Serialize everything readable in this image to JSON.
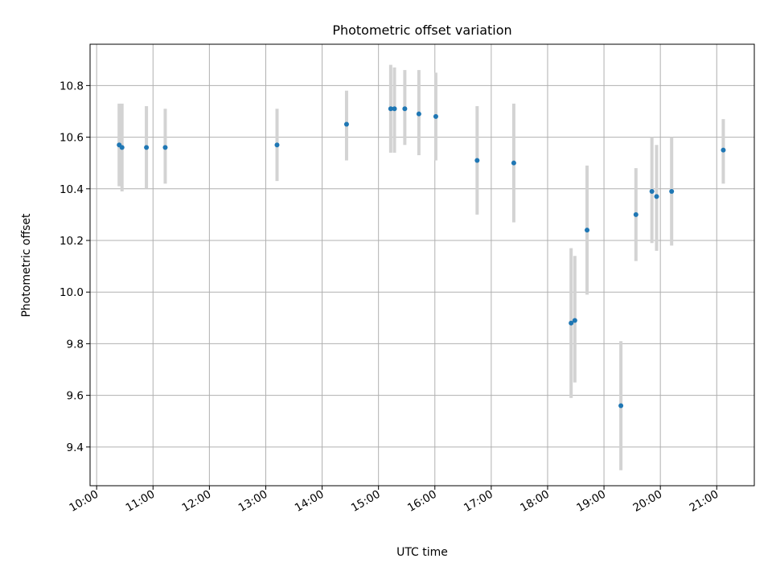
{
  "chart_data": {
    "type": "scatter",
    "title": "Photometric offset variation",
    "xlabel": "UTC time",
    "ylabel": "Photometric offset",
    "x_ticks": [
      "10:00",
      "11:00",
      "12:00",
      "13:00",
      "14:00",
      "15:00",
      "16:00",
      "17:00",
      "18:00",
      "19:00",
      "20:00",
      "21:00"
    ],
    "y_ticks": [
      "9.4",
      "9.6",
      "9.8",
      "10.0",
      "10.2",
      "10.4",
      "10.6",
      "10.8"
    ],
    "xlim": [
      "09:53",
      "21:40"
    ],
    "ylim": [
      9.25,
      10.96
    ],
    "grid": true,
    "colors": {
      "point": "#1f77b4",
      "errorbar": "#d3d3d3",
      "grid": "#b0b0b0"
    },
    "points": [
      {
        "x": "10:24",
        "y": 10.57,
        "err_low": 10.41,
        "err_high": 10.73
      },
      {
        "x": "10:27",
        "y": 10.56,
        "err_low": 10.39,
        "err_high": 10.73
      },
      {
        "x": "10:53",
        "y": 10.56,
        "err_low": 10.4,
        "err_high": 10.72
      },
      {
        "x": "11:13",
        "y": 10.56,
        "err_low": 10.42,
        "err_high": 10.71
      },
      {
        "x": "13:12",
        "y": 10.57,
        "err_low": 10.43,
        "err_high": 10.71
      },
      {
        "x": "14:26",
        "y": 10.65,
        "err_low": 10.51,
        "err_high": 10.78
      },
      {
        "x": "15:13",
        "y": 10.71,
        "err_low": 10.54,
        "err_high": 10.88
      },
      {
        "x": "15:17",
        "y": 10.71,
        "err_low": 10.54,
        "err_high": 10.87
      },
      {
        "x": "15:28",
        "y": 10.71,
        "err_low": 10.57,
        "err_high": 10.86
      },
      {
        "x": "15:43",
        "y": 10.69,
        "err_low": 10.53,
        "err_high": 10.86
      },
      {
        "x": "16:01",
        "y": 10.68,
        "err_low": 10.51,
        "err_high": 10.85
      },
      {
        "x": "16:45",
        "y": 10.51,
        "err_low": 10.3,
        "err_high": 10.72
      },
      {
        "x": "17:24",
        "y": 10.5,
        "err_low": 10.27,
        "err_high": 10.73
      },
      {
        "x": "18:25",
        "y": 9.88,
        "err_low": 9.59,
        "err_high": 10.17
      },
      {
        "x": "18:29",
        "y": 9.89,
        "err_low": 9.65,
        "err_high": 10.14
      },
      {
        "x": "18:42",
        "y": 10.24,
        "err_low": 9.99,
        "err_high": 10.49
      },
      {
        "x": "19:18",
        "y": 9.56,
        "err_low": 9.31,
        "err_high": 9.81
      },
      {
        "x": "19:34",
        "y": 10.3,
        "err_low": 10.12,
        "err_high": 10.48
      },
      {
        "x": "19:51",
        "y": 10.39,
        "err_low": 10.19,
        "err_high": 10.6
      },
      {
        "x": "19:56",
        "y": 10.37,
        "err_low": 10.16,
        "err_high": 10.57
      },
      {
        "x": "20:12",
        "y": 10.39,
        "err_low": 10.18,
        "err_high": 10.6
      },
      {
        "x": "21:07",
        "y": 10.55,
        "err_low": 10.42,
        "err_high": 10.67
      }
    ]
  }
}
